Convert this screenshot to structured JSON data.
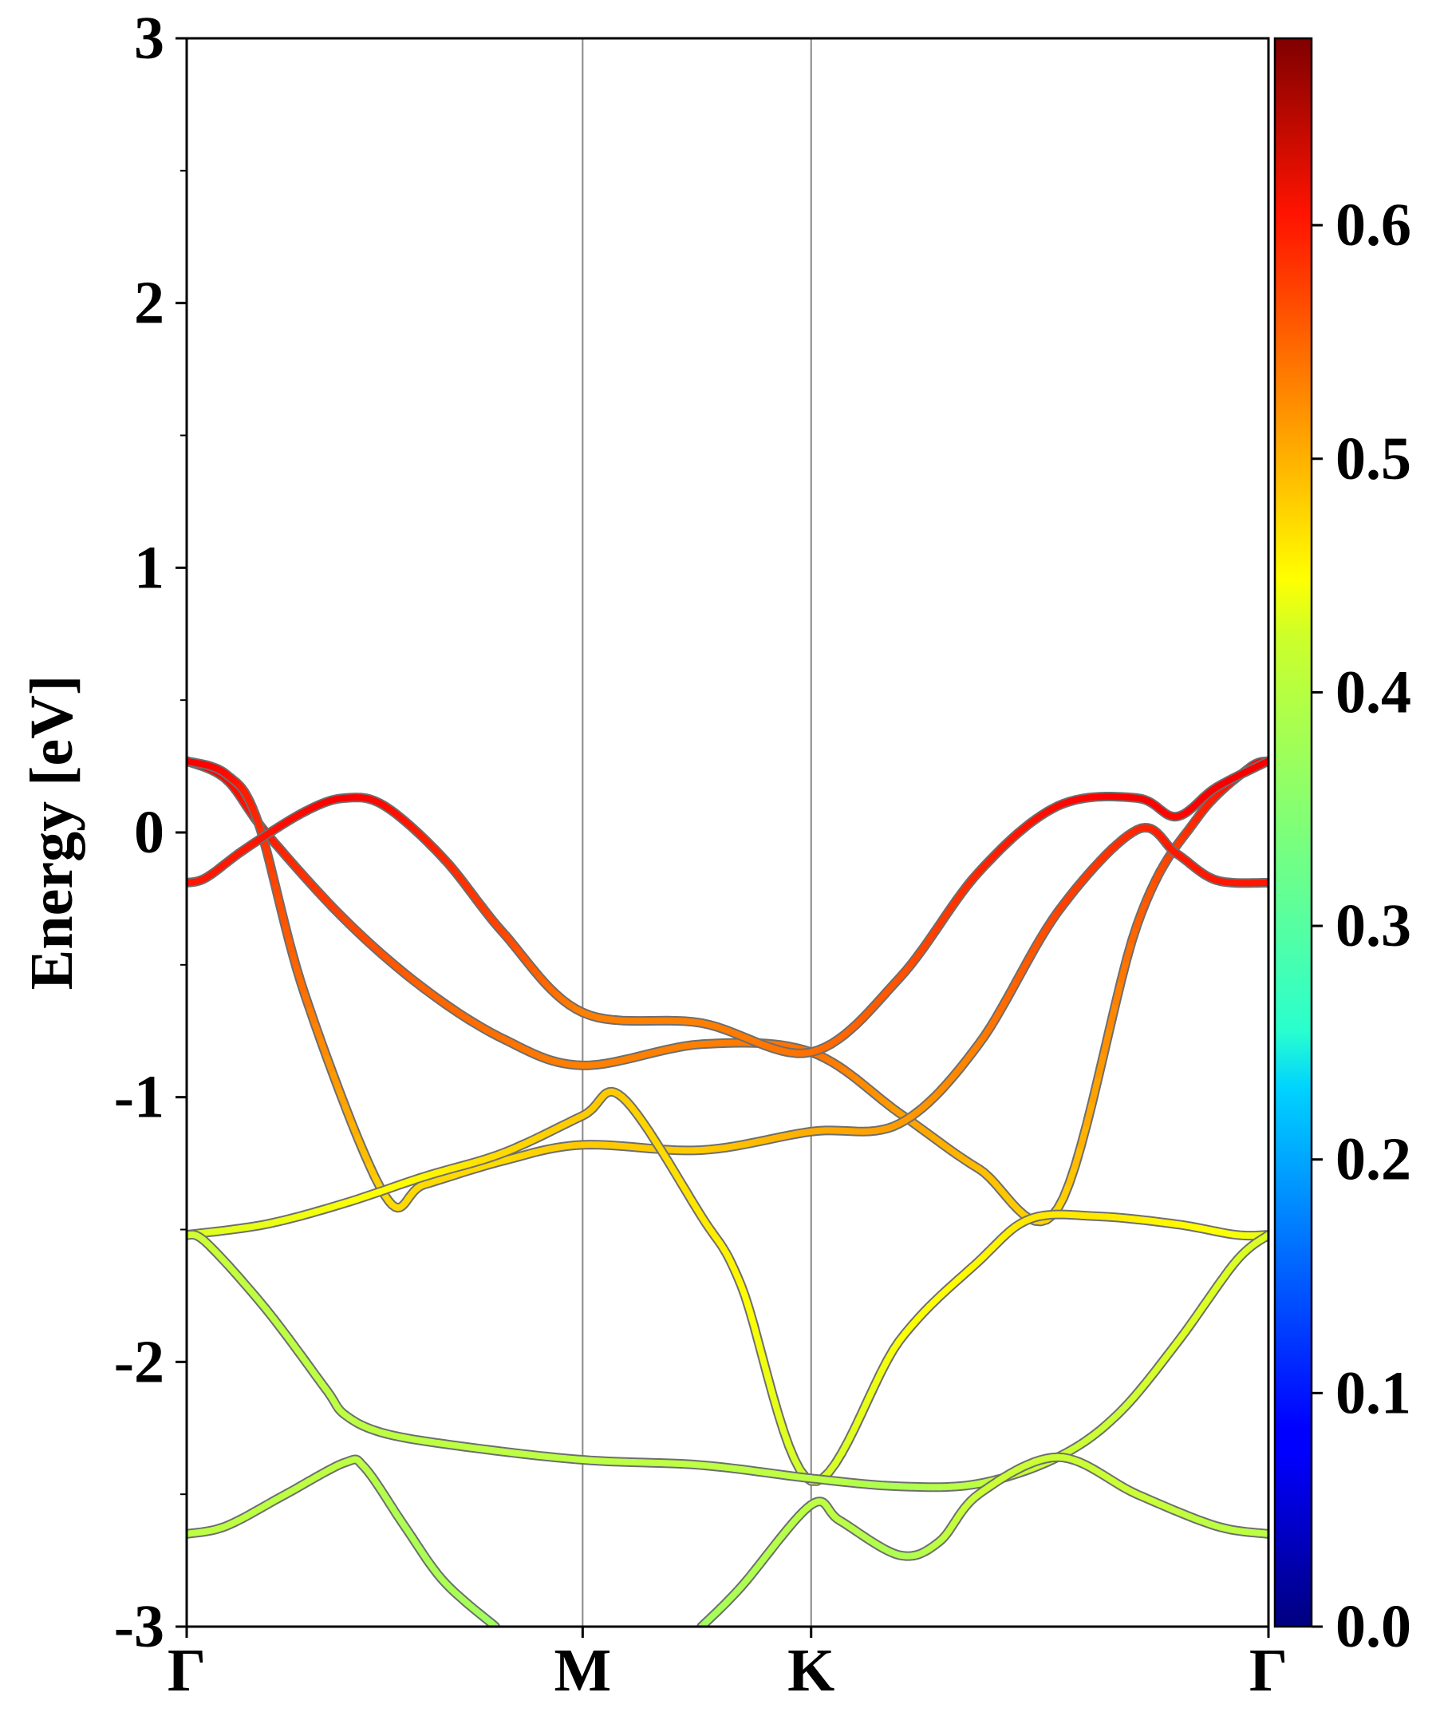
{
  "chart_data": {
    "type": "line",
    "title": "",
    "xlabel": "",
    "ylabel": "Energy [eV]",
    "ylim": [
      -3,
      3
    ],
    "yticks": [
      "-3",
      "-2",
      "-1",
      "0",
      "1",
      "2",
      "3"
    ],
    "high_symmetry_points": [
      {
        "label": "Γ",
        "k": 0.0
      },
      {
        "label": "M",
        "k": 1.0
      },
      {
        "label": "K",
        "k": 1.577
      },
      {
        "label": "Γ",
        "k": 2.732
      }
    ],
    "colorbar": {
      "colormap": "jet",
      "range": [
        0.0,
        0.68
      ],
      "ticks": [
        "0.0",
        "0.1",
        "0.2",
        "0.3",
        "0.4",
        "0.5",
        "0.6"
      ]
    },
    "series": [
      {
        "x": [
          0.0,
          0.1,
          0.2,
          0.4,
          0.6,
          0.8,
          1.0,
          1.3,
          1.577,
          1.8,
          2.0,
          2.2,
          2.4,
          2.55,
          2.68,
          2.732
        ],
        "y": [
          0.27,
          0.2,
          0.0,
          -0.33,
          -0.59,
          -0.78,
          -0.88,
          -0.8,
          -0.83,
          -1.06,
          -1.27,
          -1.42,
          -0.35,
          0.05,
          0.24,
          0.27
        ],
        "weight": [
          0.6,
          0.59,
          0.58,
          0.55,
          0.53,
          0.52,
          0.51,
          0.51,
          0.52,
          0.49,
          0.47,
          0.45,
          0.53,
          0.57,
          0.59,
          0.6
        ]
      },
      {
        "x": [
          0.0,
          0.1,
          0.18,
          0.3,
          0.5,
          0.6,
          0.8,
          1.0,
          1.3,
          1.577,
          1.8,
          2.0,
          2.2,
          2.4,
          2.5,
          2.6,
          2.732
        ],
        "y": [
          0.27,
          0.22,
          0.04,
          -0.62,
          -1.37,
          -1.33,
          -1.24,
          -1.18,
          -1.2,
          -1.13,
          -1.1,
          -0.8,
          -0.3,
          0.01,
          -0.08,
          -0.18,
          -0.19
        ],
        "weight": [
          0.6,
          0.59,
          0.57,
          0.52,
          0.45,
          0.45,
          0.45,
          0.46,
          0.46,
          0.48,
          0.49,
          0.51,
          0.55,
          0.57,
          0.58,
          0.58,
          0.58
        ]
      },
      {
        "x": [
          0.0,
          0.05,
          0.15,
          0.3,
          0.4,
          0.5,
          0.65,
          0.8,
          1.0,
          1.3,
          1.577,
          1.8,
          2.0,
          2.2,
          2.4,
          2.5,
          2.6,
          2.732
        ],
        "y": [
          -0.19,
          -0.17,
          -0.06,
          0.08,
          0.13,
          0.1,
          -0.1,
          -0.38,
          -0.68,
          -0.72,
          -0.83,
          -0.55,
          -0.15,
          0.1,
          0.13,
          0.06,
          0.17,
          0.27
        ],
        "weight": [
          0.58,
          0.58,
          0.58,
          0.59,
          0.6,
          0.59,
          0.57,
          0.55,
          0.51,
          0.51,
          0.52,
          0.54,
          0.57,
          0.59,
          0.6,
          0.59,
          0.6,
          0.6
        ]
      },
      {
        "x": [
          0.0,
          0.2,
          0.4,
          0.6,
          0.8,
          1.0,
          1.1,
          1.3,
          1.4,
          1.577,
          1.8,
          2.0,
          2.13,
          2.3,
          2.5,
          2.65,
          2.732
        ],
        "y": [
          -1.52,
          -1.48,
          -1.4,
          -1.3,
          -1.21,
          -1.07,
          -1.0,
          -1.45,
          -1.71,
          -2.45,
          -1.92,
          -1.62,
          -1.46,
          -1.45,
          -1.48,
          -1.52,
          -1.52
        ],
        "weight": [
          0.4,
          0.41,
          0.42,
          0.43,
          0.45,
          0.46,
          0.46,
          0.44,
          0.43,
          0.39,
          0.42,
          0.43,
          0.44,
          0.44,
          0.43,
          0.42,
          0.41
        ]
      },
      {
        "x": [
          0.0,
          0.05,
          0.2,
          0.35,
          0.4,
          0.5,
          0.7,
          1.0,
          1.3,
          1.577,
          1.8,
          2.0,
          2.2,
          2.35,
          2.5,
          2.65,
          2.732
        ],
        "y": [
          -1.52,
          -1.55,
          -1.8,
          -2.1,
          -2.2,
          -2.27,
          -2.32,
          -2.37,
          -2.39,
          -2.44,
          -2.47,
          -2.46,
          -2.36,
          -2.2,
          -1.93,
          -1.62,
          -1.52
        ],
        "weight": [
          0.4,
          0.39,
          0.38,
          0.38,
          0.38,
          0.38,
          0.38,
          0.38,
          0.38,
          0.38,
          0.37,
          0.38,
          0.39,
          0.39,
          0.4,
          0.4,
          0.4
        ]
      },
      {
        "x": [
          0.0,
          0.1,
          0.25,
          0.4,
          0.45,
          0.55,
          0.65,
          0.78
        ],
        "y": [
          -2.65,
          -2.62,
          -2.5,
          -2.38,
          -2.4,
          -2.62,
          -2.83,
          -3.0
        ],
        "weight": [
          0.38,
          0.38,
          0.38,
          0.38,
          0.38,
          0.37,
          0.37,
          0.36
        ]
      },
      {
        "x": [
          1.3,
          1.4,
          1.577,
          1.65,
          1.8,
          1.9,
          2.0,
          2.2,
          2.4,
          2.6,
          2.732
        ],
        "y": [
          -3.0,
          -2.85,
          -2.54,
          -2.6,
          -2.73,
          -2.68,
          -2.5,
          -2.36,
          -2.5,
          -2.62,
          -2.65
        ],
        "weight": [
          0.36,
          0.37,
          0.38,
          0.38,
          0.37,
          0.38,
          0.39,
          0.39,
          0.39,
          0.38,
          0.38
        ]
      }
    ]
  }
}
